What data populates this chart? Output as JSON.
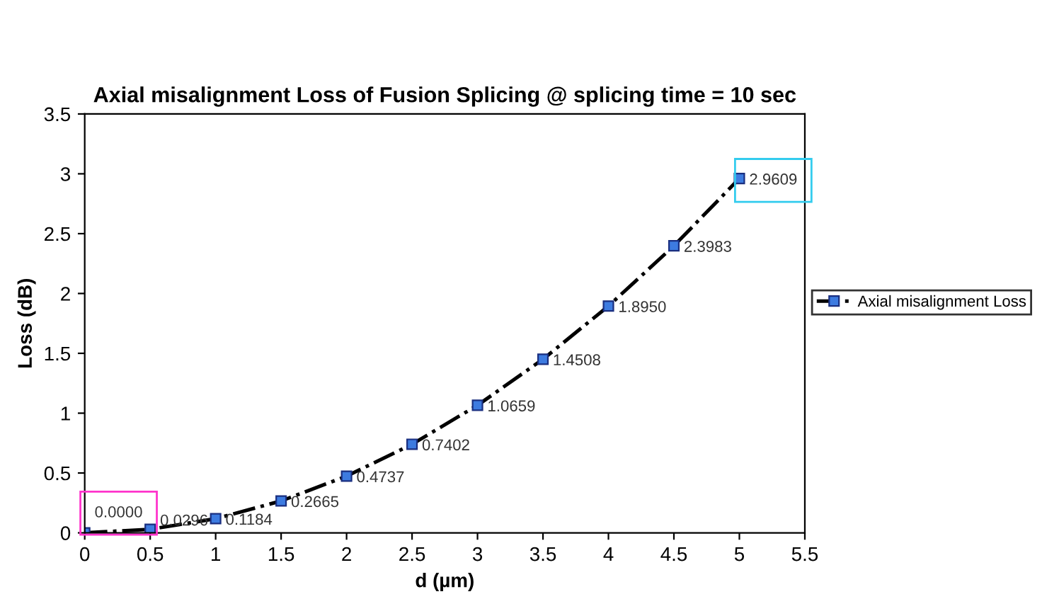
{
  "chart_data": {
    "type": "line",
    "title": "Axial misalignment Loss of Fusion Splicing @ splicing time = 10 sec",
    "xlabel": "d (µm)",
    "ylabel": "Loss (dB)",
    "x": [
      0,
      0.5,
      1,
      1.5,
      2,
      2.5,
      3,
      3.5,
      4,
      4.5,
      5
    ],
    "series": [
      {
        "name": "Axial misalignment Loss",
        "color": "#000000",
        "values": [
          0.0,
          0.0296,
          0.1184,
          0.2665,
          0.4737,
          0.7402,
          1.0659,
          1.4508,
          1.895,
          2.3983,
          2.9609
        ],
        "value_labels": [
          "0.0000",
          "0.0296",
          "0.1184",
          "0.2665",
          "0.4737",
          "0.7402",
          "1.0659",
          "1.4508",
          "1.8950",
          "2.3983",
          "2.9609"
        ]
      }
    ],
    "xlim": [
      0,
      5.5
    ],
    "xticks": [
      0,
      0.5,
      1,
      1.5,
      2,
      2.5,
      3,
      3.5,
      4,
      4.5,
      5,
      5.5
    ],
    "ylim": [
      0,
      3.5
    ],
    "yticks": [
      0,
      0.5,
      1,
      1.5,
      2,
      2.5,
      3,
      3.5
    ],
    "marker": "square",
    "line_style": "dashdot",
    "legend": "right",
    "grid": false
  }
}
